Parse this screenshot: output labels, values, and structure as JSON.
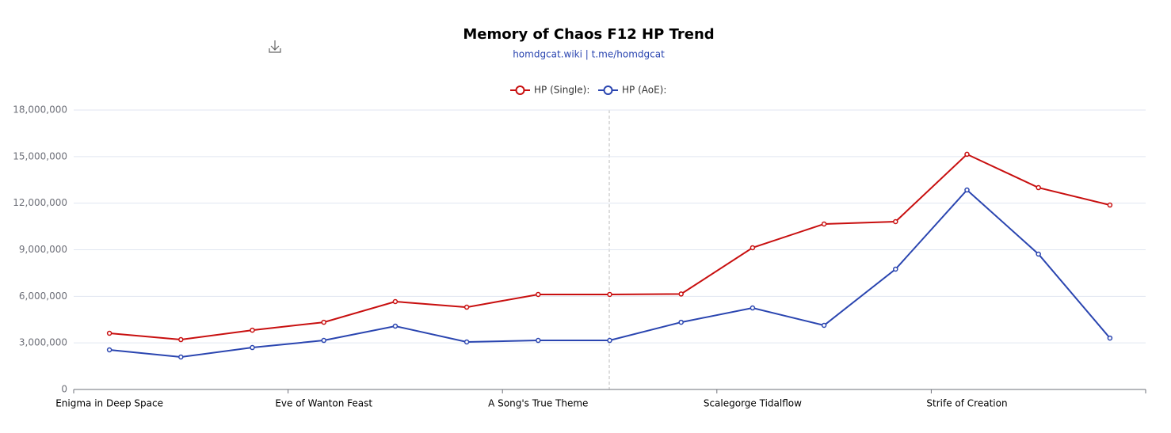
{
  "chart_data": {
    "type": "line",
    "title": "Memory of Chaos F12 HP Trend",
    "subtitle": "homdgcat.wiki | t.me/homdgcat",
    "categories": [
      "Enigma in Deep Space",
      null,
      null,
      "Eve of Wanton Feast",
      null,
      null,
      "A Song's True Theme",
      null,
      null,
      "Scalegorge Tidalflow",
      null,
      null,
      "Strife of Creation",
      null,
      null
    ],
    "series": [
      {
        "name": "HP (Single):",
        "color": "#c80f0f",
        "values": [
          3620000,
          3210000,
          3820000,
          4330000,
          5660000,
          5300000,
          6120000,
          6120000,
          6150000,
          9130000,
          10660000,
          10810000,
          15150000,
          13000000,
          11880000
        ]
      },
      {
        "name": "HP (AoE):",
        "color": "#2a45b0",
        "values": [
          2550000,
          2090000,
          2700000,
          3160000,
          4080000,
          3060000,
          3160000,
          3160000,
          4330000,
          5250000,
          4130000,
          7750000,
          12850000,
          8720000,
          3310000
        ]
      }
    ],
    "ylim": [
      0,
      18000000
    ],
    "yticks": [
      0,
      {
        "value": 3000000,
        "label": "3,000,000"
      },
      {
        "value": 6000000,
        "label": "6,000,000"
      },
      {
        "value": 9000000,
        "label": "9,000,000"
      },
      {
        "value": 12000000,
        "label": "12,000,000"
      },
      {
        "value": 15000000,
        "label": "15,000,000"
      },
      {
        "value": 18000000,
        "label": "18,000,000"
      }
    ],
    "grid": true,
    "legend": "top"
  }
}
